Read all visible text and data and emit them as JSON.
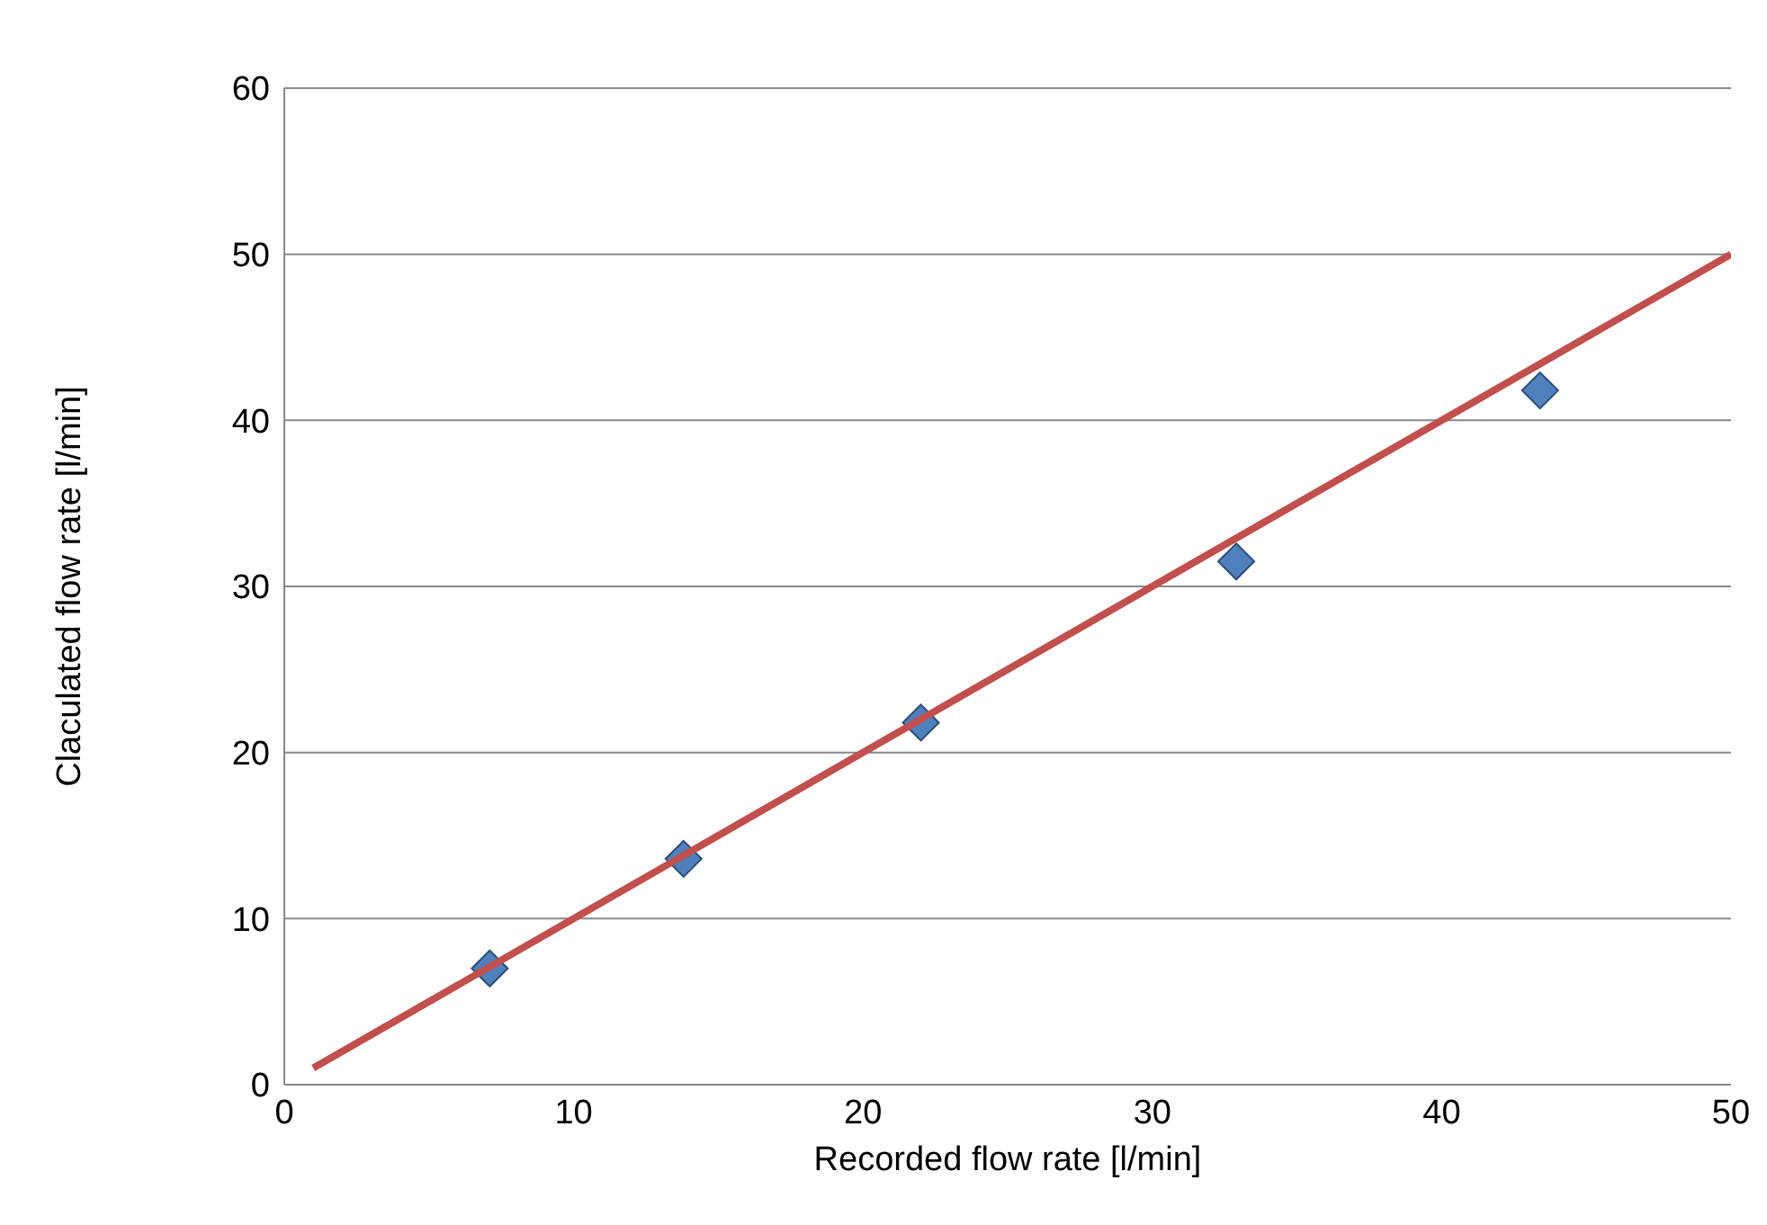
{
  "chart_data": {
    "type": "scatter",
    "xlabel": "Recorded flow rate [l/min]",
    "ylabel": "Claculated flow rate [l/min]",
    "xlim": [
      0,
      50
    ],
    "xticks": [
      0,
      10,
      20,
      30,
      40,
      50
    ],
    "ylim": [
      0,
      60
    ],
    "yticks": [
      0,
      10,
      20,
      30,
      40,
      50,
      60
    ],
    "grid": "y",
    "marker": "diamond",
    "series": [
      {
        "type": "scatter",
        "color": "#4f81bd",
        "x": [
          7.1,
          13.8,
          22.0,
          32.9,
          43.4
        ],
        "values": [
          7.0,
          13.6,
          21.8,
          31.5,
          41.8
        ]
      },
      {
        "type": "line",
        "color": "#c0504d",
        "x": [
          1,
          50
        ],
        "values": [
          1,
          50
        ],
        "marker": "none"
      }
    ]
  }
}
